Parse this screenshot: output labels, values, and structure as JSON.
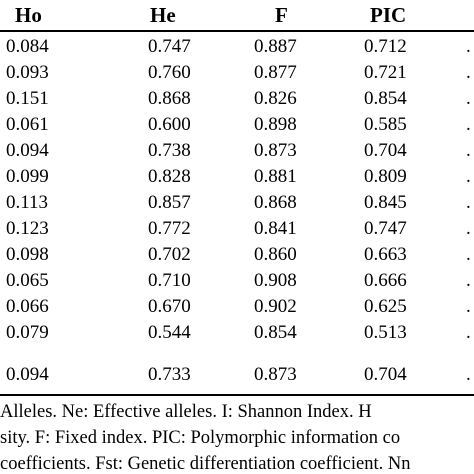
{
  "table": {
    "headers": [
      "Ho",
      "He",
      "F",
      "PIC"
    ],
    "rows": [
      [
        "0.084",
        "0.747",
        "0.887",
        "0.712"
      ],
      [
        "0.093",
        "0.760",
        "0.877",
        "0.721"
      ],
      [
        "0.151",
        "0.868",
        "0.826",
        "0.854"
      ],
      [
        "0.061",
        "0.600",
        "0.898",
        "0.585"
      ],
      [
        "0.094",
        "0.738",
        "0.873",
        "0.704"
      ],
      [
        "0.099",
        "0.828",
        "0.881",
        "0.809"
      ],
      [
        "0.113",
        "0.857",
        "0.868",
        "0.845"
      ],
      [
        "0.123",
        "0.772",
        "0.841",
        "0.747"
      ],
      [
        "0.098",
        "0.702",
        "0.860",
        "0.663"
      ],
      [
        "0.065",
        "0.710",
        "0.908",
        "0.666"
      ],
      [
        "0.066",
        "0.670",
        "0.902",
        "0.625"
      ],
      [
        "0.079",
        "0.544",
        "0.854",
        "0.513"
      ],
      [
        "0.094",
        "0.733",
        "0.873",
        "0.704"
      ]
    ],
    "trailing_mark": "."
  },
  "footnotes": [
    "Alleles.  Ne:  Effective alleles.  I:  Shannon Index.  H",
    "sity. F: Fixed index. PIC: Polymorphic information co",
    "coefficients. Fst: Genetic differentiation coefficient. Nn"
  ]
}
